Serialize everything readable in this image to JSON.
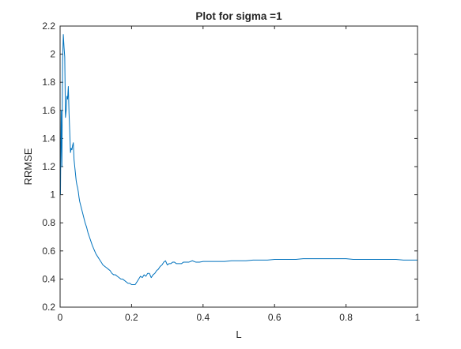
{
  "figure": {
    "background": "#ffffff"
  },
  "chart_data": {
    "type": "line",
    "title": "Plot for sigma =1",
    "xlabel": "L",
    "ylabel": "RRMSE",
    "xlim": [
      0,
      1
    ],
    "ylim": [
      0.2,
      2.2
    ],
    "x_ticks": [
      0,
      0.2,
      0.4,
      0.6,
      0.8,
      1
    ],
    "x_tick_labels": [
      "0",
      "0.2",
      "0.4",
      "0.6",
      "0.8",
      "1"
    ],
    "y_ticks": [
      0.2,
      0.4,
      0.6,
      0.8,
      1,
      1.2,
      1.4,
      1.6,
      1.8,
      2,
      2.2
    ],
    "y_tick_labels": [
      "0.2",
      "0.4",
      "0.6",
      "0.8",
      "1",
      "1.2",
      "1.4",
      "1.6",
      "1.8",
      "2",
      "2.2"
    ],
    "grid": false,
    "box": true,
    "line_color": "#0072BD",
    "axis_color": "#262626",
    "series": [
      {
        "x": [
          0.001,
          0.003,
          0.005,
          0.007,
          0.009,
          0.011,
          0.013,
          0.015,
          0.017,
          0.019,
          0.021,
          0.023,
          0.025,
          0.027,
          0.029,
          0.031,
          0.033,
          0.035,
          0.037,
          0.039,
          0.041,
          0.043,
          0.045,
          0.047,
          0.049,
          0.051,
          0.053,
          0.055,
          0.058,
          0.061,
          0.064,
          0.067,
          0.07,
          0.074,
          0.078,
          0.082,
          0.086,
          0.09,
          0.095,
          0.1,
          0.105,
          0.11,
          0.115,
          0.12,
          0.125,
          0.13,
          0.135,
          0.14,
          0.145,
          0.15,
          0.155,
          0.16,
          0.165,
          0.17,
          0.175,
          0.18,
          0.185,
          0.19,
          0.195,
          0.2,
          0.205,
          0.21,
          0.215,
          0.22,
          0.225,
          0.23,
          0.235,
          0.24,
          0.245,
          0.25,
          0.255,
          0.26,
          0.265,
          0.27,
          0.275,
          0.28,
          0.285,
          0.29,
          0.295,
          0.3,
          0.305,
          0.31,
          0.315,
          0.32,
          0.325,
          0.33,
          0.335,
          0.34,
          0.345,
          0.35,
          0.36,
          0.37,
          0.38,
          0.39,
          0.4,
          0.42,
          0.44,
          0.46,
          0.48,
          0.5,
          0.52,
          0.54,
          0.56,
          0.58,
          0.6,
          0.62,
          0.64,
          0.66,
          0.68,
          0.7,
          0.72,
          0.74,
          0.76,
          0.78,
          0.8,
          0.82,
          0.84,
          0.86,
          0.88,
          0.9,
          0.92,
          0.94,
          0.96,
          0.98,
          1.0
        ],
        "y": [
          1.0,
          1.6,
          1.2,
          1.95,
          2.14,
          2.05,
          1.98,
          1.55,
          1.6,
          1.7,
          1.68,
          1.77,
          1.58,
          1.45,
          1.3,
          1.33,
          1.32,
          1.35,
          1.37,
          1.25,
          1.2,
          1.15,
          1.1,
          1.07,
          1.05,
          1.02,
          0.98,
          0.95,
          0.92,
          0.89,
          0.86,
          0.83,
          0.8,
          0.77,
          0.73,
          0.7,
          0.67,
          0.64,
          0.61,
          0.58,
          0.56,
          0.54,
          0.52,
          0.5,
          0.49,
          0.48,
          0.47,
          0.46,
          0.44,
          0.43,
          0.43,
          0.42,
          0.41,
          0.4,
          0.4,
          0.39,
          0.38,
          0.37,
          0.37,
          0.36,
          0.36,
          0.36,
          0.38,
          0.4,
          0.42,
          0.41,
          0.43,
          0.42,
          0.44,
          0.44,
          0.41,
          0.43,
          0.44,
          0.46,
          0.47,
          0.49,
          0.5,
          0.52,
          0.53,
          0.5,
          0.51,
          0.51,
          0.52,
          0.52,
          0.51,
          0.51,
          0.51,
          0.51,
          0.52,
          0.52,
          0.52,
          0.53,
          0.52,
          0.52,
          0.525,
          0.525,
          0.525,
          0.525,
          0.53,
          0.53,
          0.53,
          0.535,
          0.535,
          0.535,
          0.54,
          0.54,
          0.54,
          0.54,
          0.545,
          0.545,
          0.545,
          0.545,
          0.545,
          0.545,
          0.545,
          0.54,
          0.54,
          0.54,
          0.54,
          0.54,
          0.54,
          0.54,
          0.535,
          0.535,
          0.535
        ]
      }
    ]
  }
}
